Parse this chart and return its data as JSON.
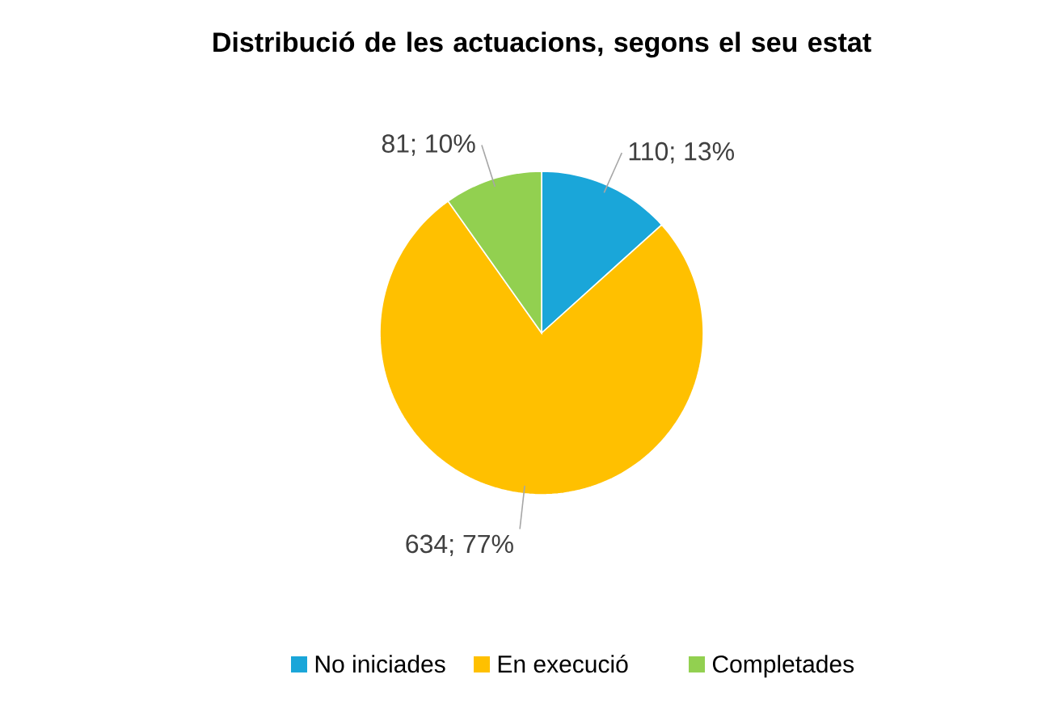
{
  "chart_data": {
    "type": "pie",
    "title": "Distribució de les actuacions, segons el seu estat",
    "categories": [
      "No iniciades",
      "En execució",
      "Completades"
    ],
    "values": [
      110,
      634,
      81
    ],
    "colors": [
      "#1aa6d9",
      "#ffc000",
      "#92d050"
    ],
    "value_labels": [
      "110; 13%",
      "634; 77%",
      "81; 10%"
    ],
    "legend": "bottom"
  }
}
